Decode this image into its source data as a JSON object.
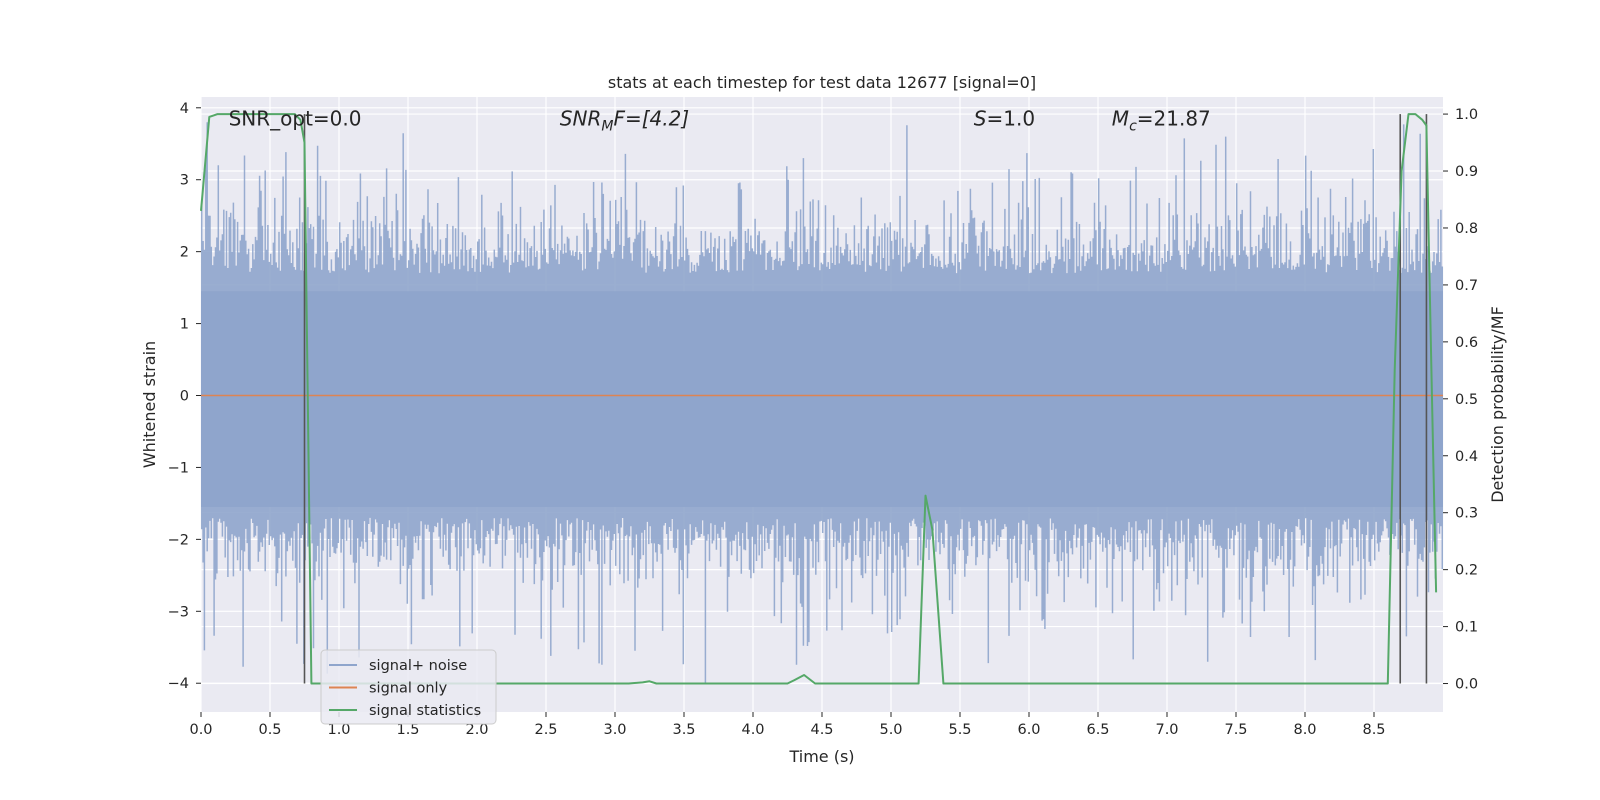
{
  "chart_data": {
    "type": "line",
    "title": "stats at each timestep for test data 12677 [signal=0]",
    "xlabel": "Time (s)",
    "ylabel": "Whitened strain",
    "ylabel_right": "Detection probability/MF",
    "xlim": [
      0.0,
      9.0
    ],
    "ylim": [
      -4.4,
      4.15
    ],
    "ylim_right": [
      -0.05,
      1.03
    ],
    "grid": true,
    "legend_position": "lower-left",
    "x_ticks": [
      "0.0",
      "0.5",
      "1.0",
      "1.5",
      "2.0",
      "2.5",
      "3.0",
      "3.5",
      "4.0",
      "4.5",
      "5.0",
      "5.5",
      "6.0",
      "6.5",
      "7.0",
      "7.5",
      "8.0",
      "8.5"
    ],
    "y_ticks": [
      "−4",
      "−3",
      "−2",
      "−1",
      "0",
      "1",
      "2",
      "3",
      "4"
    ],
    "y_ticks_right": [
      "0.0",
      "0.1",
      "0.2",
      "0.3",
      "0.4",
      "0.5",
      "0.6",
      "0.7",
      "0.8",
      "0.9",
      "1.0"
    ],
    "annotations": {
      "snr_opt": "SNR_opt=0.0",
      "snr_mf_main": "SNR",
      "snr_mf_sub": "M",
      "snr_mf_tail": "F=[4.2]",
      "s_main": "S",
      "s_tail": "=1.0",
      "mc_main": "M",
      "mc_sub": "c",
      "mc_tail": "=21.87"
    },
    "series": [
      {
        "name": "signal+ noise",
        "color": "#8fa5cc",
        "axis": "left",
        "description_values": "whitened noise, typical amplitude ±1.7, peaks to about ±3.8",
        "values": [
          [
            0.0,
            0.0
          ],
          [
            9.0,
            0.0
          ]
        ]
      },
      {
        "name": "signal only",
        "color": "#dd8452",
        "axis": "left",
        "x": [
          0.0,
          9.0
        ],
        "values": [
          0.0,
          0.0
        ]
      },
      {
        "name": "signal statistics",
        "color": "#55a868",
        "axis": "right",
        "x": [
          0.0,
          0.06,
          0.12,
          0.3,
          0.5,
          0.68,
          0.72,
          0.75,
          0.8,
          1.0,
          2.0,
          3.1,
          3.2,
          3.25,
          3.3,
          3.4,
          4.0,
          4.25,
          4.3,
          4.37,
          4.45,
          4.5,
          5.0,
          5.2,
          5.25,
          5.3,
          5.38,
          5.5,
          6.0,
          7.0,
          8.0,
          8.6,
          8.65,
          8.7,
          8.75,
          8.8,
          8.85,
          8.88,
          8.92,
          8.95
        ],
        "values": [
          0.83,
          0.995,
          1.0,
          1.0,
          1.0,
          1.0,
          0.99,
          0.95,
          0.0,
          0.0,
          0.0,
          0.0,
          0.002,
          0.004,
          0.0,
          0.0,
          0.0,
          0.0,
          0.006,
          0.015,
          0.0,
          0.0,
          0.0,
          0.0,
          0.33,
          0.27,
          0.0,
          0.0,
          0.0,
          0.0,
          0.0,
          0.0,
          0.55,
          0.9,
          1.0,
          1.0,
          0.99,
          0.98,
          0.5,
          0.16
        ]
      }
    ],
    "vertical_markers": [
      {
        "x": 0.75,
        "color": "#555555"
      },
      {
        "x": 8.69,
        "color": "#555555"
      },
      {
        "x": 8.88,
        "color": "#555555"
      }
    ],
    "right_gridlines": [
      0.1,
      0.2,
      0.3,
      0.4,
      0.5,
      0.6,
      0.7,
      0.8,
      0.9,
      1.0
    ]
  },
  "legend": {
    "items": [
      {
        "label": "signal+ noise",
        "color": "#8fa5cc"
      },
      {
        "label": "signal only",
        "color": "#dd8452"
      },
      {
        "label": "signal statistics",
        "color": "#55a868"
      }
    ]
  },
  "colors": {
    "plot_background": "#eaeaf2",
    "grid": "#ffffff",
    "noise": "#8fa5cc"
  }
}
